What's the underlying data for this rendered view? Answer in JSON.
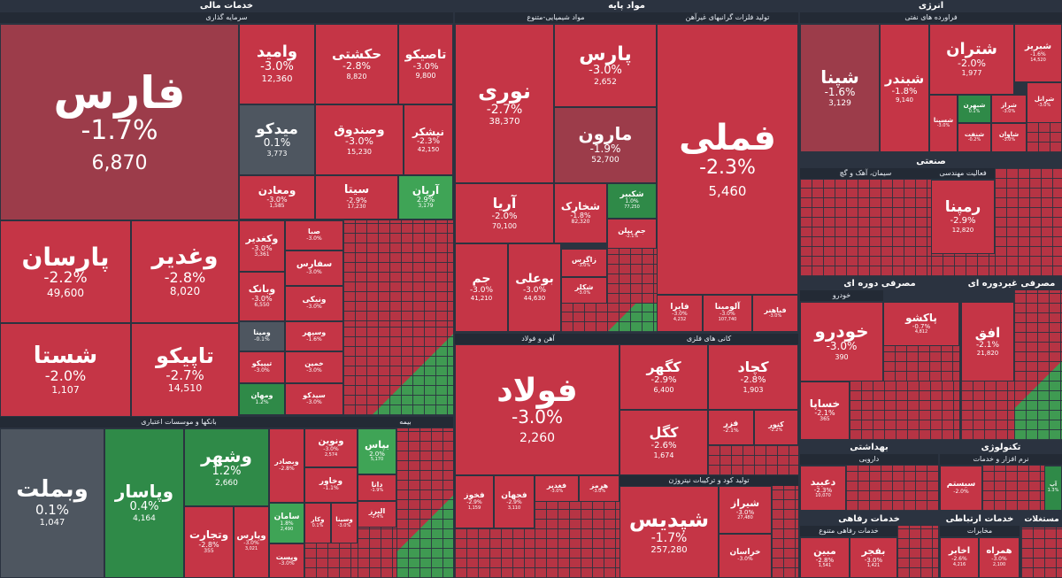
{
  "sectors": {
    "khadamat_mali": "خدمات مالی",
    "sarmaye_gozari": "سرمایه گذاری",
    "bank": "بانکها و موسسات اعتباری",
    "bime": "بیمه",
    "mavad_paye": "مواد پایه",
    "shimiyayi": "مواد شیمیایی-متنوع",
    "felezat": "تولید فلزات گرانبهای غیرآهن",
    "ahan": "آهن و فولاد",
    "kani": "کانی های فلزی",
    "tolid_kood": "تولید کود و ترکیبات نیتروژن",
    "energy": "انرژی",
    "faravarde_naft": "فراورده های نفتی",
    "sanati": "صنعتی",
    "simane": "سیمان، آهک و گچ",
    "faaliyat": "فعالیت مهندسی",
    "masrafi_dore": "مصرفی دوره ای",
    "khodro": "خودرو",
    "masrafi_ghair": "مصرفی غیردوره ای",
    "behdasht": "بهداشتی",
    "daroei": "دارویی",
    "khadamat_refahi": "خدمات رفاهی",
    "khadamat_refahi_sub": "خدمات رفاهی متنوع",
    "teknoloji": "تکنولوژی",
    "narm_afzar": "نرم افزار و خدمات",
    "ertebati": "خدمات ارتباطی",
    "mokhaberat": "مخابرات",
    "mostaghelat": "مستغلات"
  },
  "tiles": {
    "fars": {
      "name": "فارس",
      "pct": "-1.7%",
      "val": "6,870"
    },
    "vomid": {
      "name": "وامید",
      "pct": "-3.0%",
      "val": "12,360"
    },
    "hekashti": {
      "name": "حکشتی",
      "pct": "-2.8%",
      "val": "8,820"
    },
    "tapiko": {
      "name": "تاصیکو",
      "pct": "-3.0%",
      "val": "9,800"
    },
    "midko": {
      "name": "میدکو",
      "pct": "0.1%",
      "val": "3,773"
    },
    "vsandogh": {
      "name": "وصندوق",
      "pct": "-3.0%",
      "val": "15,230"
    },
    "nishakr": {
      "name": "نیشکر",
      "pct": "-2.3%",
      "val": "42,150"
    },
    "vmaaden": {
      "name": "ومعادن",
      "pct": "-3.0%",
      "val": "1,585"
    },
    "sita": {
      "name": "سیتا",
      "pct": "-2.9%",
      "val": "17,230"
    },
    "arian": {
      "name": "آریان",
      "pct": "2.9%",
      "val": "3,179"
    },
    "parsan": {
      "name": "پارسان",
      "pct": "-2.2%",
      "val": "49,600"
    },
    "vghadir": {
      "name": "وغدیر",
      "pct": "-2.8%",
      "val": "8,020"
    },
    "vkghadir": {
      "name": "وکغدیر",
      "pct": "-3.0%",
      "val": "3,361"
    },
    "vbank": {
      "name": "وبانک",
      "pct": "-3.0%",
      "val": "6,550"
    },
    "shasta": {
      "name": "شستا",
      "pct": "-2.0%",
      "val": "1,107"
    },
    "tapiko2": {
      "name": "تاپیکو",
      "pct": "-2.7%",
      "val": "14,510"
    },
    "sabaa": {
      "name": "صبا",
      "pct": "-3.0%"
    },
    "safars": {
      "name": "سفارس",
      "pct": "-3.0%"
    },
    "vniki": {
      "name": "ونیکی",
      "pct": "-3.0%"
    },
    "vsepah": {
      "name": "وسپهر",
      "pct": "-1.6%"
    },
    "vmina": {
      "name": "ومینا",
      "pct": "-0.1%"
    },
    "tipiko": {
      "name": "تیپیکو",
      "pct": "-3.0%"
    },
    "khamin": {
      "name": "خمین",
      "pct": "-3.0%"
    },
    "vmehan": {
      "name": "ومهان",
      "pct": "1.2%"
    },
    "sidko": {
      "name": "سیدکو",
      "pct": "-3.0%"
    },
    "vbemellat": {
      "name": "وبملت",
      "pct": "0.1%",
      "val": "1,047"
    },
    "vpasar": {
      "name": "وپاسار",
      "pct": "0.4%",
      "val": "4,164"
    },
    "vshahr": {
      "name": "وشهر",
      "pct": "1.2%",
      "val": "2,660"
    },
    "vtejarat": {
      "name": "وتجارت",
      "pct": "-2.8%",
      "val": "355"
    },
    "vpars": {
      "name": "وپارس",
      "pct": "-3.0%",
      "val": "3,021"
    },
    "vsina": {
      "name": "وسینا",
      "pct": "-3.0%"
    },
    "vbsader": {
      "name": "وبصادر",
      "pct": "-2.8%"
    },
    "saman": {
      "name": "سامان",
      "pct": "1.8%",
      "val": "2,490"
    },
    "vkar": {
      "name": "وکار",
      "pct": "0.1%"
    },
    "vnovin": {
      "name": "ونوین",
      "pct": "-3.0%",
      "val": "2,574"
    },
    "vkhavar": {
      "name": "وخاور",
      "pct": "-1.1%"
    },
    "vpost": {
      "name": "وپست",
      "pct": "-3.0%"
    },
    "bpas": {
      "name": "بپاس",
      "pct": "2.0%",
      "val": "5,170"
    },
    "dana": {
      "name": "دانا",
      "pct": "-1.9%"
    },
    "alborz": {
      "name": "البرز",
      "pct": "-2.4%"
    },
    "pars_m": {
      "name": "پارس",
      "pct": "-3.0%",
      "val": "2,652"
    },
    "nori": {
      "name": "نوری",
      "pct": "-2.7%",
      "val": "38,370"
    },
    "maroon": {
      "name": "مارون",
      "pct": "-1.9%",
      "val": "52,700"
    },
    "shakbir": {
      "name": "شکبیر",
      "pct": "1.0%",
      "val": "77,250"
    },
    "aria": {
      "name": "آریا",
      "pct": "-2.0%",
      "val": "70,100"
    },
    "shekharak": {
      "name": "شخارک",
      "pct": "-1.8%",
      "val": "82,320"
    },
    "jam_pilen": {
      "name": "جم پیلن",
      "pct": "-2.1%"
    },
    "zagros": {
      "name": "زاگرس",
      "pct": "-3.0%"
    },
    "jam": {
      "name": "جم",
      "pct": "-3.0%",
      "val": "41,210"
    },
    "booali": {
      "name": "بوعلی",
      "pct": "-3.0%",
      "val": "44,630"
    },
    "shekolia": {
      "name": "شکلر",
      "pct": "-3.0%"
    },
    "fameli": {
      "name": "فملی",
      "pct": "-2.3%",
      "val": "5,460"
    },
    "faira": {
      "name": "فایرا",
      "pct": "-3.0%",
      "val": "4,232"
    },
    "alumina": {
      "name": "آلومینا",
      "pct": "-3.0%",
      "val": "107,740"
    },
    "fbaher": {
      "name": "فباهنر",
      "pct": "-3.0%"
    },
    "foolad": {
      "name": "فولاد",
      "pct": "-3.0%",
      "val": "2,260"
    },
    "kegohar": {
      "name": "کگهر",
      "pct": "-2.9%",
      "val": "6,400"
    },
    "kchad": {
      "name": "کچاد",
      "pct": "-2.8%",
      "val": "1,903"
    },
    "kgol": {
      "name": "کگل",
      "pct": "-2.6%",
      "val": "1,674"
    },
    "fzar": {
      "name": "فزر",
      "pct": "-2.1%"
    },
    "kenoor": {
      "name": "کنور",
      "pct": "-2.2%"
    },
    "fkhooz": {
      "name": "فخوز",
      "pct": "-2.9%",
      "val": "1,159"
    },
    "fjahan": {
      "name": "فجهان",
      "pct": "-2.9%",
      "val": "3,110"
    },
    "fghadir": {
      "name": "فغدیر",
      "pct": "-3.0%"
    },
    "hormoz": {
      "name": "هرمز",
      "pct": "-3.0%"
    },
    "shapdis": {
      "name": "شپدیس",
      "pct": "-1.7%",
      "val": "257,280"
    },
    "shiraz": {
      "name": "شیراز",
      "pct": "-3.0%",
      "val": "27,480"
    },
    "khorasan": {
      "name": "خراسان",
      "pct": "-3.0%"
    },
    "shapna": {
      "name": "شپنا",
      "pct": "-1.6%",
      "val": "3,129"
    },
    "shabandar": {
      "name": "شبندر",
      "pct": "-1.8%",
      "val": "9,140"
    },
    "shatran": {
      "name": "شتران",
      "pct": "-2.0%",
      "val": "1,977"
    },
    "shabriz": {
      "name": "شبریز",
      "pct": "-1.6%",
      "val": "14,520"
    },
    "shasina": {
      "name": "شسینا",
      "pct": "-3.0%"
    },
    "shbehran": {
      "name": "شبهرن",
      "pct": "0.1%"
    },
    "shiraz2": {
      "name": "شراز",
      "pct": "-3.0%"
    },
    "shgol": {
      "name": "شرانل",
      "pct": "-3.0%"
    },
    "shafat": {
      "name": "شنفت",
      "pct": "-0.2%"
    },
    "shavan": {
      "name": "شاوان",
      "pct": "-3.0%"
    },
    "rampna": {
      "name": "رمپنا",
      "pct": "-2.9%",
      "val": "12,820"
    },
    "khodro": {
      "name": "خودرو",
      "pct": "-3.0%",
      "val": "390"
    },
    "pakhsho": {
      "name": "پاکشو",
      "pct": "-0.7%",
      "val": "4,812"
    },
    "khsapa": {
      "name": "خساپا",
      "pct": "-2.1%",
      "val": "365"
    },
    "ofogh": {
      "name": "افق",
      "pct": "-2.1%",
      "val": "21,820"
    },
    "dabid": {
      "name": "دعبید",
      "pct": "-2.3%",
      "val": "10,070"
    },
    "sistem": {
      "name": "سیستم",
      "pct": "-2.0%"
    },
    "abaaat": {
      "name": "آپ",
      "pct": "1.3%"
    },
    "mabin": {
      "name": "مبین",
      "pct": "-2.8%",
      "val": "1,541"
    },
    "bfajr": {
      "name": "بفجر",
      "pct": "-3.0%",
      "val": "1,421"
    },
    "akhaber": {
      "name": "اخابر",
      "pct": "-2.6%",
      "val": "4,216"
    },
    "hamrah": {
      "name": "همراه",
      "pct": "-3.0%",
      "val": "2,100"
    }
  }
}
